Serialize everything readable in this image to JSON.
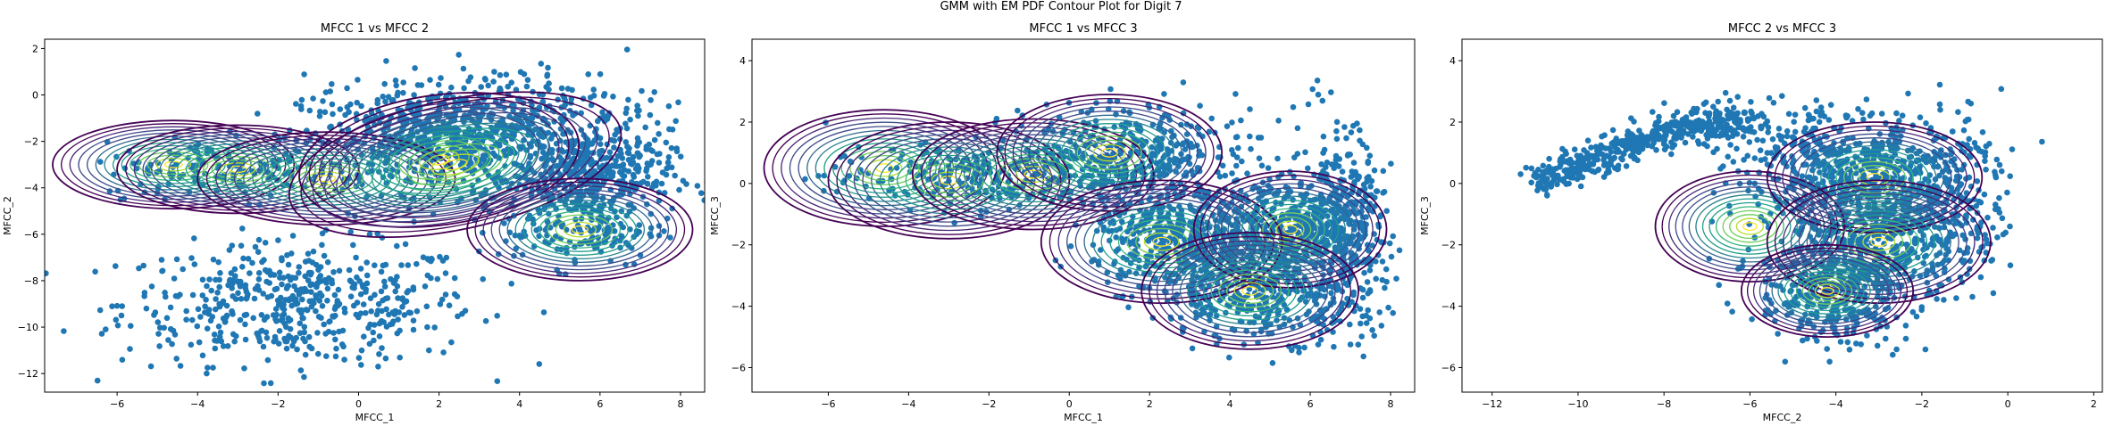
{
  "figure": {
    "suptitle": "GMM with EM PDF Contour Plot for Digit 7",
    "point_color": "#1f77b4",
    "contour_colormap": [
      "#440154",
      "#482878",
      "#3e4a89",
      "#31688e",
      "#26828e",
      "#1f9e89",
      "#35b779",
      "#6ece58",
      "#b5de2b",
      "#fde725"
    ]
  },
  "chart_data": [
    {
      "type": "scatter",
      "overlay": "gmm_pdf_contour",
      "title": "MFCC 1 vs MFCC 2",
      "xlabel": "MFCC_1",
      "ylabel": "MFCC_2",
      "xlim": [
        -7.8,
        8.6
      ],
      "ylim": [
        -12.8,
        2.4
      ],
      "xticks": [
        -6,
        -4,
        -2,
        0,
        2,
        4,
        6,
        8
      ],
      "yticks": [
        2,
        0,
        -2,
        -4,
        -6,
        -8,
        -10,
        -12
      ],
      "clusters": [
        {
          "cx": -1.5,
          "cy": -9.0,
          "sx": 2.2,
          "sy": 1.3,
          "n": 520
        },
        {
          "cx": 2.2,
          "cy": -2.0,
          "sx": 1.8,
          "sy": 1.1,
          "n": 650
        },
        {
          "cx": 5.8,
          "cy": -3.5,
          "sx": 1.0,
          "sy": 1.0,
          "n": 400
        },
        {
          "cx": 5.5,
          "cy": -5.8,
          "sx": 1.0,
          "sy": 0.8,
          "n": 150
        },
        {
          "cx": -3.2,
          "cy": -3.2,
          "sx": 1.6,
          "sy": 0.6,
          "n": 150
        },
        {
          "cx": 3.5,
          "cy": -0.5,
          "sx": 2.0,
          "sy": 0.9,
          "n": 200
        }
      ],
      "gaussians": [
        {
          "mx": -4.6,
          "my": -3.0,
          "rx": 3.0,
          "ry": 1.9,
          "angle": 0
        },
        {
          "mx": -3.0,
          "my": -3.2,
          "rx": 3.0,
          "ry": 1.9,
          "angle": 0
        },
        {
          "mx": -0.8,
          "my": -3.6,
          "rx": 3.2,
          "ry": 2.0,
          "angle": 0
        },
        {
          "mx": 2.0,
          "my": -2.8,
          "rx": 3.5,
          "ry": 2.8,
          "angle": -8
        },
        {
          "mx": 2.4,
          "my": -3.0,
          "rx": 4.2,
          "ry": 2.8,
          "angle": -12
        },
        {
          "mx": 5.5,
          "my": -5.8,
          "rx": 2.8,
          "ry": 2.2,
          "angle": 0
        }
      ]
    },
    {
      "type": "scatter",
      "overlay": "gmm_pdf_contour",
      "title": "MFCC 1 vs MFCC 3",
      "xlabel": "MFCC_1",
      "ylabel": "MFCC_3",
      "xlim": [
        -7.9,
        8.6
      ],
      "ylim": [
        -6.8,
        4.7
      ],
      "xticks": [
        -6,
        -4,
        -2,
        0,
        2,
        4,
        6,
        8
      ],
      "yticks": [
        4,
        2,
        0,
        -2,
        -4,
        -6
      ],
      "clusters": [
        {
          "cx": -2.5,
          "cy": 0.2,
          "sx": 1.8,
          "sy": 0.5,
          "n": 250
        },
        {
          "cx": 1.2,
          "cy": 0.9,
          "sx": 1.2,
          "sy": 0.7,
          "n": 300
        },
        {
          "cx": 2.8,
          "cy": -1.8,
          "sx": 1.1,
          "sy": 0.8,
          "n": 450
        },
        {
          "cx": 5.5,
          "cy": -1.5,
          "sx": 1.0,
          "sy": 0.9,
          "n": 450
        },
        {
          "cx": 4.8,
          "cy": -3.5,
          "sx": 1.3,
          "sy": 0.8,
          "n": 400
        },
        {
          "cx": 6.8,
          "cy": -1.5,
          "sx": 0.5,
          "sy": 1.6,
          "n": 300
        },
        {
          "cx": 3.0,
          "cy": 1.5,
          "sx": 2.0,
          "sy": 0.8,
          "n": 100
        }
      ],
      "gaussians": [
        {
          "mx": -4.6,
          "my": 0.5,
          "rx": 3.0,
          "ry": 1.9,
          "angle": 0
        },
        {
          "mx": -3.0,
          "my": 0.1,
          "rx": 3.0,
          "ry": 1.9,
          "angle": 0
        },
        {
          "mx": -0.9,
          "my": 0.3,
          "rx": 3.0,
          "ry": 1.8,
          "angle": 0
        },
        {
          "mx": 1.0,
          "my": 1.0,
          "rx": 2.8,
          "ry": 1.9,
          "angle": 0
        },
        {
          "mx": 2.3,
          "my": -1.9,
          "rx": 3.0,
          "ry": 2.0,
          "angle": 0
        },
        {
          "mx": 5.5,
          "my": -1.5,
          "rx": 2.4,
          "ry": 1.9,
          "angle": 0
        },
        {
          "mx": 4.5,
          "my": -3.5,
          "rx": 2.7,
          "ry": 1.9,
          "angle": 0
        }
      ]
    },
    {
      "type": "scatter",
      "overlay": "gmm_pdf_contour",
      "title": "MFCC 2 vs MFCC 3",
      "xlabel": "MFCC_2",
      "ylabel": "MFCC_3",
      "xlim": [
        -12.7,
        2.2
      ],
      "ylim": [
        -6.8,
        4.7
      ],
      "xticks": [
        -12,
        -10,
        -8,
        -6,
        -4,
        -2,
        0,
        2
      ],
      "yticks": [
        4,
        2,
        0,
        -2,
        -4,
        -6
      ],
      "arc": {
        "x0": -11.0,
        "x1": -5.8,
        "y0": 0.0,
        "y1": 2.0,
        "n": 500
      },
      "clusters": [
        {
          "cx": -3.2,
          "cy": -1.5,
          "sx": 1.2,
          "sy": 1.0,
          "n": 500
        },
        {
          "cx": -3.5,
          "cy": 0.4,
          "sx": 1.3,
          "sy": 0.8,
          "n": 400
        },
        {
          "cx": -4.0,
          "cy": -3.6,
          "sx": 0.9,
          "sy": 0.8,
          "n": 350
        },
        {
          "cx": -1.5,
          "cy": -0.5,
          "sx": 0.7,
          "sy": 1.5,
          "n": 250
        },
        {
          "cx": -4.5,
          "cy": 1.5,
          "sx": 1.0,
          "sy": 0.6,
          "n": 100
        }
      ],
      "gaussians": [
        {
          "mx": -6.0,
          "my": -1.4,
          "rx": 2.2,
          "ry": 1.8,
          "angle": 0
        },
        {
          "mx": -3.1,
          "my": 0.2,
          "rx": 2.5,
          "ry": 1.8,
          "angle": 0
        },
        {
          "mx": -3.0,
          "my": -1.9,
          "rx": 2.6,
          "ry": 2.0,
          "angle": 0
        },
        {
          "mx": -4.2,
          "my": -3.5,
          "rx": 2.0,
          "ry": 1.5,
          "angle": 0
        }
      ]
    }
  ]
}
